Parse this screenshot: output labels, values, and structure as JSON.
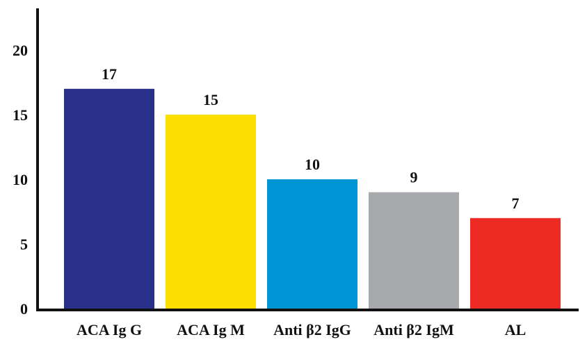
{
  "chart_data": {
    "type": "bar",
    "categories": [
      "ACA Ig G",
      "ACA Ig M",
      "Anti β2 IgG",
      "Anti β2 IgM",
      "AL"
    ],
    "values": [
      17,
      15,
      10,
      9,
      7
    ],
    "data_labels": [
      "17",
      "15",
      "10",
      "9",
      "7"
    ],
    "y_ticks": [
      "0",
      "5",
      "10",
      "15",
      "20"
    ],
    "ylim": [
      0,
      24
    ],
    "grid": false,
    "legend": "none",
    "colors": [
      "#29308a",
      "#fede00",
      "#0096d6",
      "#a7a9ac",
      "#ed2a24"
    ],
    "title": "",
    "xlabel": "",
    "ylabel": ""
  }
}
